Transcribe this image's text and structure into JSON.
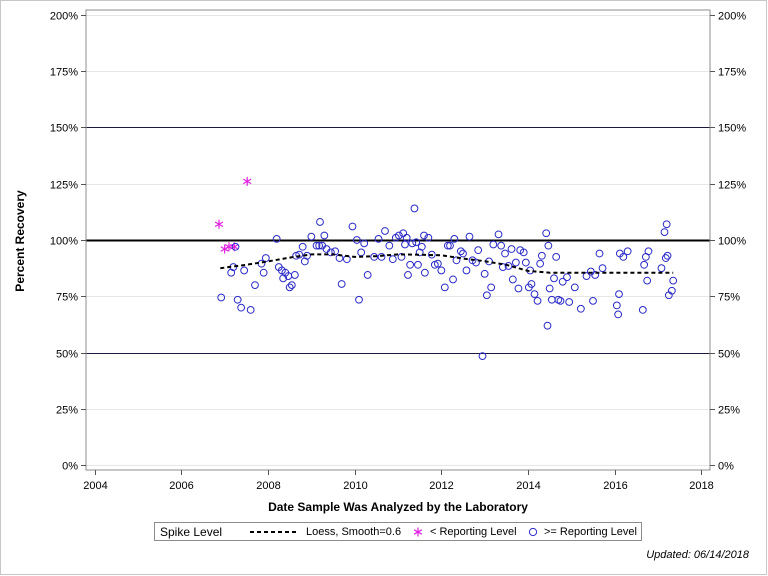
{
  "chart_data": {
    "type": "scatter",
    "title": "",
    "xlabel": "Date Sample Was Analyzed by the Laboratory",
    "ylabel": "Percent Recovery",
    "xlim": [
      2003.8,
      2018.2
    ],
    "ylim": [
      -2,
      202
    ],
    "x_ticks": [
      2004,
      2006,
      2008,
      2010,
      2012,
      2014,
      2016,
      2018
    ],
    "x_tick_labels": [
      "2004",
      "2006",
      "2008",
      "2010",
      "2012",
      "2014",
      "2016",
      "2018"
    ],
    "y_ticks": [
      0,
      25,
      50,
      75,
      100,
      125,
      150,
      175,
      200
    ],
    "y_tick_labels": [
      "0%",
      "25%",
      "50%",
      "75%",
      "100%",
      "125%",
      "150%",
      "175%",
      "200%"
    ],
    "reference_lines": [
      {
        "y": 50,
        "style": "thin"
      },
      {
        "y": 100,
        "style": "thick"
      },
      {
        "y": 150,
        "style": "thin"
      }
    ],
    "grid": true,
    "legend": {
      "title": "Spike Level",
      "placement": "bottom",
      "entries": [
        "Loess, Smooth=0.6",
        "< Reporting Level",
        ">= Reporting Level"
      ]
    },
    "colors": {
      "below": "#e01ee0",
      "above": "#2b2bc8",
      "loess": "#000000",
      "reference": "#1a1a3c"
    },
    "series": [
      {
        "name": "< Reporting Level",
        "marker": "star",
        "points": [
          [
            2006.87,
            107
          ],
          [
            2007.0,
            96
          ],
          [
            2007.1,
            97
          ],
          [
            2007.22,
            97
          ],
          [
            2007.52,
            126
          ]
        ]
      },
      {
        "name": ">= Reporting Level",
        "marker": "circle",
        "points": [
          [
            2006.92,
            74.5
          ],
          [
            2007.15,
            85.5
          ],
          [
            2007.2,
            88
          ],
          [
            2007.25,
            97
          ],
          [
            2007.3,
            73.5
          ],
          [
            2007.38,
            70
          ],
          [
            2007.45,
            86.5
          ],
          [
            2007.6,
            69
          ],
          [
            2007.7,
            80
          ],
          [
            2007.85,
            89.5
          ],
          [
            2007.9,
            85.5
          ],
          [
            2007.95,
            92
          ],
          [
            2008.2,
            100.5
          ],
          [
            2008.25,
            88
          ],
          [
            2008.32,
            86.5
          ],
          [
            2008.35,
            83
          ],
          [
            2008.4,
            85.5
          ],
          [
            2008.47,
            84
          ],
          [
            2008.5,
            79
          ],
          [
            2008.55,
            80
          ],
          [
            2008.62,
            84.5
          ],
          [
            2008.65,
            93
          ],
          [
            2008.72,
            93.5
          ],
          [
            2008.8,
            97
          ],
          [
            2008.85,
            90.5
          ],
          [
            2008.9,
            93
          ],
          [
            2009.0,
            101.5
          ],
          [
            2009.12,
            97.5
          ],
          [
            2009.18,
            97.5
          ],
          [
            2009.2,
            108
          ],
          [
            2009.25,
            97.5
          ],
          [
            2009.3,
            102
          ],
          [
            2009.35,
            96
          ],
          [
            2009.45,
            94.5
          ],
          [
            2009.55,
            95
          ],
          [
            2009.65,
            92
          ],
          [
            2009.7,
            80.5
          ],
          [
            2009.82,
            91.5
          ],
          [
            2009.95,
            106
          ],
          [
            2010.05,
            100
          ],
          [
            2010.1,
            73.5
          ],
          [
            2010.15,
            94.5
          ],
          [
            2010.22,
            98.5
          ],
          [
            2010.3,
            84.5
          ],
          [
            2010.45,
            92.5
          ],
          [
            2010.55,
            100.5
          ],
          [
            2010.62,
            92.5
          ],
          [
            2010.7,
            104
          ],
          [
            2010.8,
            97.5
          ],
          [
            2010.88,
            91.5
          ],
          [
            2010.95,
            101
          ],
          [
            2011.02,
            102
          ],
          [
            2011.08,
            92.5
          ],
          [
            2011.12,
            103
          ],
          [
            2011.16,
            98
          ],
          [
            2011.2,
            101
          ],
          [
            2011.23,
            84.5
          ],
          [
            2011.28,
            89
          ],
          [
            2011.33,
            98.5
          ],
          [
            2011.38,
            114
          ],
          [
            2011.42,
            99
          ],
          [
            2011.46,
            89
          ],
          [
            2011.5,
            94.5
          ],
          [
            2011.55,
            97
          ],
          [
            2011.6,
            102
          ],
          [
            2011.62,
            85.5
          ],
          [
            2011.7,
            101
          ],
          [
            2011.78,
            93.5
          ],
          [
            2011.85,
            89
          ],
          [
            2011.92,
            89.5
          ],
          [
            2012.0,
            86.5
          ],
          [
            2012.08,
            79
          ],
          [
            2012.15,
            97.5
          ],
          [
            2012.2,
            97.5
          ],
          [
            2012.27,
            82.5
          ],
          [
            2012.3,
            100.5
          ],
          [
            2012.35,
            91
          ],
          [
            2012.45,
            95
          ],
          [
            2012.5,
            94
          ],
          [
            2012.58,
            86.5
          ],
          [
            2012.65,
            101.5
          ],
          [
            2012.72,
            91
          ],
          [
            2012.8,
            90
          ],
          [
            2012.85,
            95.5
          ],
          [
            2012.95,
            48.5
          ],
          [
            2013.0,
            85
          ],
          [
            2013.05,
            75.5
          ],
          [
            2013.1,
            90.5
          ],
          [
            2013.15,
            79
          ],
          [
            2013.2,
            98
          ],
          [
            2013.32,
            102.5
          ],
          [
            2013.38,
            97.5
          ],
          [
            2013.42,
            88
          ],
          [
            2013.47,
            94
          ],
          [
            2013.55,
            88.5
          ],
          [
            2013.62,
            96
          ],
          [
            2013.65,
            82.5
          ],
          [
            2013.72,
            90
          ],
          [
            2013.78,
            78.5
          ],
          [
            2013.82,
            95.5
          ],
          [
            2013.9,
            94.5
          ],
          [
            2013.95,
            90
          ],
          [
            2014.02,
            79
          ],
          [
            2014.05,
            86.5
          ],
          [
            2014.08,
            80.5
          ],
          [
            2014.15,
            76
          ],
          [
            2014.22,
            73
          ],
          [
            2014.28,
            89.5
          ],
          [
            2014.32,
            93
          ],
          [
            2014.42,
            103
          ],
          [
            2014.45,
            62
          ],
          [
            2014.47,
            97.5
          ],
          [
            2014.5,
            78.5
          ],
          [
            2014.55,
            73.5
          ],
          [
            2014.6,
            83
          ],
          [
            2014.65,
            92.5
          ],
          [
            2014.7,
            73.5
          ],
          [
            2014.75,
            73
          ],
          [
            2014.8,
            81.5
          ],
          [
            2014.9,
            83.5
          ],
          [
            2014.95,
            72.5
          ],
          [
            2015.08,
            79
          ],
          [
            2015.22,
            69.5
          ],
          [
            2015.35,
            84
          ],
          [
            2015.45,
            86
          ],
          [
            2015.5,
            73
          ],
          [
            2015.55,
            84.5
          ],
          [
            2015.65,
            94
          ],
          [
            2015.72,
            87.5
          ],
          [
            2016.05,
            71
          ],
          [
            2016.08,
            67
          ],
          [
            2016.1,
            76
          ],
          [
            2016.12,
            94
          ],
          [
            2016.2,
            92.5
          ],
          [
            2016.3,
            95
          ],
          [
            2016.65,
            69
          ],
          [
            2016.68,
            89
          ],
          [
            2016.72,
            92.5
          ],
          [
            2016.75,
            82
          ],
          [
            2016.78,
            95
          ],
          [
            2017.08,
            87.5
          ],
          [
            2017.15,
            103.5
          ],
          [
            2017.18,
            92
          ],
          [
            2017.2,
            107
          ],
          [
            2017.22,
            93
          ],
          [
            2017.25,
            75.5
          ],
          [
            2017.32,
            77.5
          ],
          [
            2017.35,
            82
          ]
        ]
      },
      {
        "name": "Loess, Smooth=0.6",
        "line_style": "dashed",
        "points": [
          [
            2006.9,
            87.5
          ],
          [
            2007.5,
            89
          ],
          [
            2008.0,
            90.5
          ],
          [
            2008.5,
            92.2
          ],
          [
            2009.0,
            93.6
          ],
          [
            2009.5,
            93.6
          ],
          [
            2010.0,
            92.5
          ],
          [
            2010.5,
            92.8
          ],
          [
            2011.0,
            93.6
          ],
          [
            2011.5,
            93.5
          ],
          [
            2012.0,
            93.2
          ],
          [
            2012.5,
            91.8
          ],
          [
            2013.0,
            90.6
          ],
          [
            2013.5,
            89
          ],
          [
            2014.0,
            86.3
          ],
          [
            2014.5,
            85.5
          ],
          [
            2015.0,
            85.5
          ],
          [
            2015.5,
            85.5
          ],
          [
            2016.0,
            85.5
          ],
          [
            2016.5,
            85.5
          ],
          [
            2017.0,
            85.5
          ],
          [
            2017.35,
            85.5
          ]
        ]
      }
    ]
  },
  "footer": {
    "updated": "Updated: 06/14/2018"
  }
}
